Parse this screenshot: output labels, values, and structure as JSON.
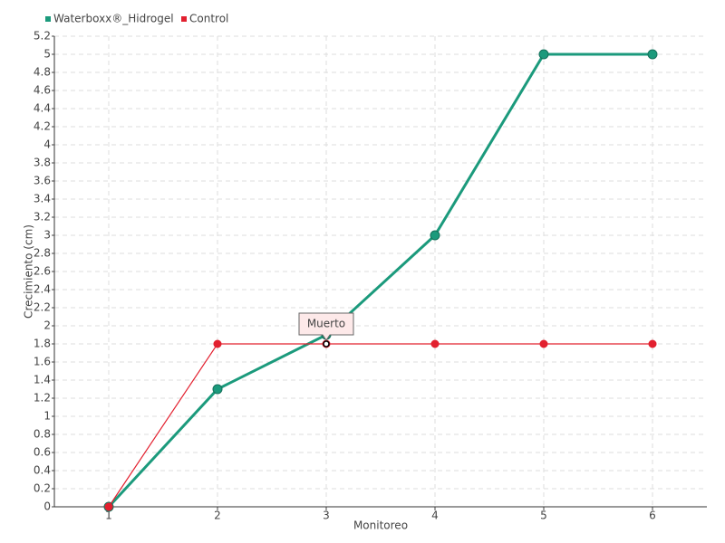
{
  "chart_data": {
    "type": "line",
    "x_label": "Monitoreo",
    "y_label": "Crecimiento (cm)",
    "categories": [
      "1",
      "2",
      "3",
      "4",
      "5",
      "6"
    ],
    "series": [
      {
        "name": "Waterboxx®_Hidrogel",
        "color": "#1b9a7c",
        "values": [
          0,
          1.3,
          1.9,
          3,
          5,
          5
        ]
      },
      {
        "name": "Control",
        "color": "#e2202f",
        "values": [
          0,
          1.8,
          1.8,
          1.8,
          1.8,
          1.8
        ]
      }
    ],
    "annotation": "Muerto",
    "ylim": [
      0,
      5.2
    ],
    "yticks": [
      0,
      0.2,
      0.4,
      0.6,
      0.8,
      1,
      1.2,
      1.4,
      1.6,
      1.8,
      2,
      2.2,
      2.4,
      2.6,
      2.8,
      3,
      3.2,
      3.4,
      3.6,
      3.8,
      4,
      4.2,
      4.4,
      4.6,
      4.8,
      5,
      5.2
    ],
    "grid": true,
    "legend": "top-left"
  }
}
